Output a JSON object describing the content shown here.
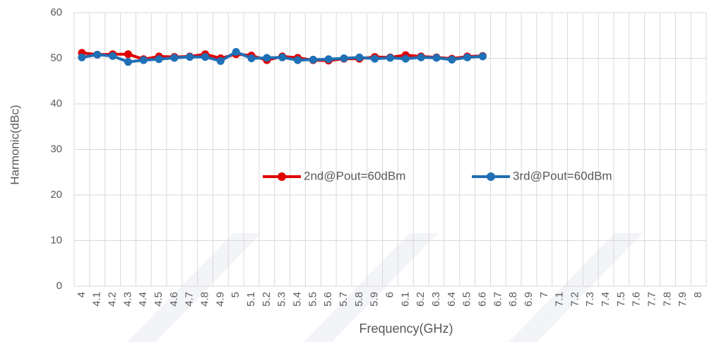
{
  "chart_data": {
    "type": "line",
    "y_label": "Harmonic(dBc)",
    "x_label": "Frequency(GHz)",
    "categories": [
      "4",
      "4.1",
      "4.2",
      "4.3",
      "4.4",
      "4.5",
      "4.6",
      "4.7",
      "4.8",
      "4.9",
      "5",
      "5.1",
      "5.2",
      "5.3",
      "5.4",
      "5.5",
      "5.6",
      "5.7",
      "5.8",
      "5.9",
      "6",
      "6.1",
      "6.2",
      "6.3",
      "6.4",
      "6.5",
      "6.6",
      "6.7",
      "6.8",
      "6.9",
      "7",
      "7.1",
      "7.2",
      "7.3",
      "7.4",
      "7.5",
      "7.6",
      "7.7",
      "7.8",
      "7.9",
      "8"
    ],
    "series": [
      {
        "name": "2nd@Pout=60dBm",
        "color": "#e00000",
        "values": [
          51.2,
          50.8,
          50.9,
          50.9,
          49.8,
          50.4,
          50.3,
          50.4,
          50.9,
          50.0,
          50.9,
          50.6,
          49.6,
          50.4,
          50.1,
          49.6,
          49.5,
          49.9,
          49.9,
          50.3,
          50.2,
          50.7,
          50.4,
          50.2,
          49.9,
          50.4,
          50.5,
          null,
          null,
          null,
          null,
          null,
          null,
          null,
          null,
          null,
          null,
          null,
          null,
          null,
          null
        ]
      },
      {
        "name": "3rd@Pout=60dBm",
        "color": "#1f6fb5",
        "values": [
          50.2,
          50.8,
          50.5,
          49.2,
          49.6,
          49.8,
          50.1,
          50.3,
          50.3,
          49.4,
          51.4,
          50.0,
          50.1,
          50.2,
          49.6,
          49.7,
          49.8,
          50.0,
          50.2,
          49.9,
          50.1,
          49.9,
          50.2,
          50.1,
          49.7,
          50.2,
          50.4,
          null,
          null,
          null,
          null,
          null,
          null,
          null,
          null,
          null,
          null,
          null,
          null,
          null,
          null
        ]
      }
    ],
    "ylim": [
      0,
      60
    ],
    "yticks": [
      0,
      10,
      20,
      30,
      40,
      50,
      60
    ],
    "grid": true
  }
}
